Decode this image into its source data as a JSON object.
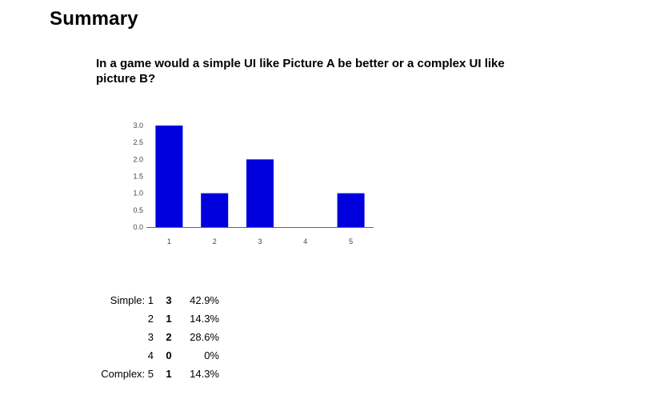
{
  "page": {
    "title": "Summary"
  },
  "question": "In a game would a simple UI like Picture A be better or a complex UI like picture B?",
  "chart_data": {
    "type": "bar",
    "categories": [
      "1",
      "2",
      "3",
      "4",
      "5"
    ],
    "values": [
      3,
      1,
      2,
      0,
      1
    ],
    "ylim": [
      0,
      3
    ],
    "yticks": [
      "0.0",
      "0.5",
      "1.0",
      "1.5",
      "2.0",
      "2.5",
      "3.0"
    ],
    "bar_color": "#0000dd",
    "grid": false,
    "legend": "none"
  },
  "summary": {
    "rows": [
      {
        "label": "Simple: 1",
        "count": "3",
        "percent": "42.9%"
      },
      {
        "label": "2",
        "count": "1",
        "percent": "14.3%"
      },
      {
        "label": "3",
        "count": "2",
        "percent": "28.6%"
      },
      {
        "label": "4",
        "count": "0",
        "percent": "0%"
      },
      {
        "label": "Complex: 5",
        "count": "1",
        "percent": "14.3%"
      }
    ]
  }
}
